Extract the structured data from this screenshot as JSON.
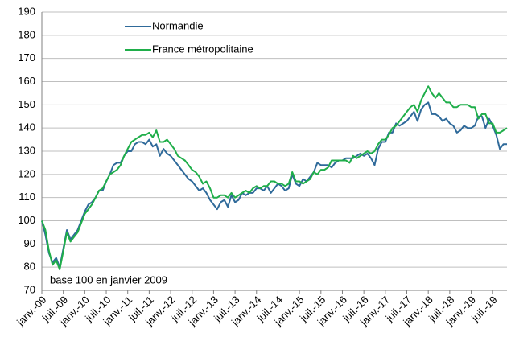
{
  "chart_data": {
    "type": "line",
    "annotation": "base 100 en  janvier 2009",
    "legend": "upper left",
    "grid": true,
    "ylim": [
      70,
      190
    ],
    "yticks": [
      70,
      80,
      90,
      100,
      110,
      120,
      130,
      140,
      150,
      160,
      170,
      180,
      190
    ],
    "categories": [
      "janv.-09",
      null,
      null,
      null,
      null,
      null,
      "juil.-09",
      null,
      null,
      null,
      null,
      null,
      "janv.-10",
      null,
      null,
      null,
      null,
      null,
      "juil.-10",
      null,
      null,
      null,
      null,
      null,
      "janv.-11",
      null,
      null,
      null,
      null,
      null,
      "juil.-11",
      null,
      null,
      null,
      null,
      null,
      "janv.-12",
      null,
      null,
      null,
      null,
      null,
      "juil.-12",
      null,
      null,
      null,
      null,
      null,
      "janv.-13",
      null,
      null,
      null,
      null,
      null,
      "juil.-13",
      null,
      null,
      null,
      null,
      null,
      "janv.-14",
      null,
      null,
      null,
      null,
      null,
      "juil.-14",
      null,
      null,
      null,
      null,
      null,
      "janv.-15",
      null,
      null,
      null,
      null,
      null,
      "juil.-15",
      null,
      null,
      null,
      null,
      null,
      "janv.-16",
      null,
      null,
      null,
      null,
      null,
      "juil.-16",
      null,
      null,
      null,
      null,
      null,
      "janv.-17",
      null,
      null,
      null,
      null,
      null,
      "juil.-17",
      null,
      null,
      null,
      null,
      null,
      "janv.-18",
      null,
      null,
      null,
      null,
      null,
      "juil.-18",
      null,
      null,
      null,
      null,
      null,
      "janv.-19",
      null,
      null,
      null,
      null,
      null,
      "juil.-19",
      null,
      null,
      null,
      null
    ],
    "series": [
      {
        "name": "Normandie",
        "color": "#2f6a9a",
        "values": [
          100,
          94,
          86,
          82,
          84,
          80,
          88,
          96,
          92,
          94,
          96,
          100,
          104,
          107,
          108,
          110,
          113,
          113,
          117,
          120,
          124,
          125,
          125,
          128,
          130,
          130,
          133,
          134,
          134,
          133,
          135,
          132,
          133,
          128,
          131,
          129,
          128,
          126,
          124,
          122,
          120,
          118,
          117,
          115,
          113,
          114,
          112,
          109,
          107,
          105,
          108,
          109,
          106,
          111,
          108,
          109,
          112,
          111,
          112,
          112,
          114,
          114,
          113,
          115,
          112,
          114,
          116,
          115,
          113,
          114,
          120,
          116,
          115,
          118,
          117,
          119,
          121,
          125,
          124,
          124,
          124,
          123,
          125,
          126,
          126,
          127,
          127,
          127,
          128,
          129,
          128,
          129,
          127,
          124,
          131,
          134,
          134,
          138,
          138,
          142,
          141,
          142,
          143,
          145,
          147,
          143,
          148,
          150,
          151,
          146,
          146,
          145,
          143,
          144,
          142,
          141,
          138,
          139,
          141,
          140,
          140,
          141,
          145,
          145,
          140,
          144,
          141,
          137,
          131,
          133,
          133
        ]
      },
      {
        "name": "France métropolitaine",
        "color": "#1fae4a",
        "values": [
          100,
          96,
          87,
          81,
          83,
          79,
          87,
          95,
          91,
          93,
          95,
          99,
          103,
          105,
          107,
          110,
          113,
          114,
          117,
          120,
          121,
          122,
          124,
          128,
          131,
          134,
          135,
          136,
          137,
          137,
          138,
          136,
          139,
          134,
          134,
          135,
          133,
          131,
          128,
          127,
          126,
          124,
          122,
          121,
          119,
          116,
          117,
          114,
          110,
          110,
          111,
          111,
          110,
          112,
          110,
          111,
          112,
          113,
          112,
          114,
          115,
          114,
          115,
          115,
          117,
          117,
          116,
          116,
          115,
          116,
          121,
          117,
          117,
          116,
          117,
          118,
          121,
          120,
          122,
          122,
          123,
          126,
          126,
          126,
          126,
          126,
          125,
          128,
          127,
          128,
          129,
          130,
          129,
          130,
          133,
          135,
          135,
          137,
          140,
          141,
          143,
          145,
          147,
          149,
          150,
          147,
          152,
          155,
          158,
          155,
          153,
          155,
          153,
          151,
          151,
          149,
          149,
          150,
          150,
          150,
          149,
          149,
          144,
          146,
          146,
          142,
          142,
          138,
          138,
          139,
          140
        ]
      }
    ]
  }
}
